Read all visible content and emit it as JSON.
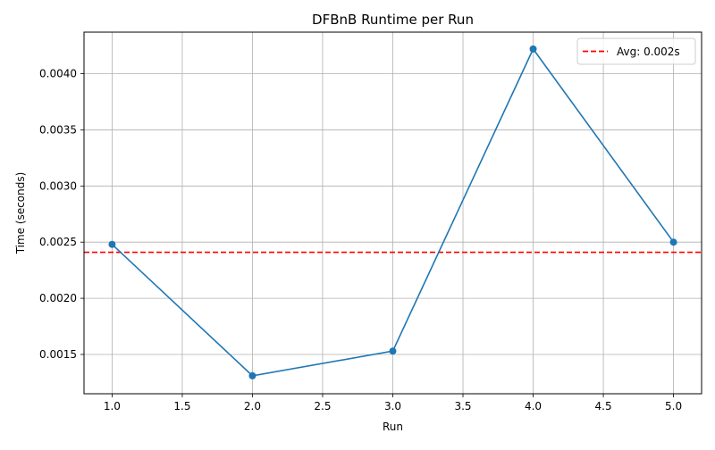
{
  "chart_data": {
    "type": "line",
    "title": "DFBnB Runtime per Run",
    "xlabel": "Run",
    "ylabel": "Time (seconds)",
    "x": [
      1,
      2,
      3,
      4,
      5
    ],
    "series": [
      {
        "name": "",
        "values": [
          0.00248,
          0.00131,
          0.00153,
          0.00422,
          0.0025
        ],
        "color": "#1f77b4"
      }
    ],
    "reference_line": {
      "label": "Avg: 0.002s",
      "value": 0.00241,
      "color": "#ff0000",
      "style": "dashed"
    },
    "xlim": [
      0.8,
      5.2
    ],
    "ylim": [
      0.00115,
      0.00437
    ],
    "xticks": [
      1.0,
      1.5,
      2.0,
      2.5,
      3.0,
      3.5,
      4.0,
      4.5,
      5.0
    ],
    "xtick_labels": [
      "1.0",
      "1.5",
      "2.0",
      "2.5",
      "3.0",
      "3.5",
      "4.0",
      "4.5",
      "5.0"
    ],
    "yticks": [
      0.0015,
      0.002,
      0.0025,
      0.003,
      0.0035,
      0.004
    ],
    "ytick_labels": [
      "0.0015",
      "0.0020",
      "0.0025",
      "0.0030",
      "0.0035",
      "0.0040"
    ],
    "grid": true,
    "legend_position": "top-right"
  }
}
